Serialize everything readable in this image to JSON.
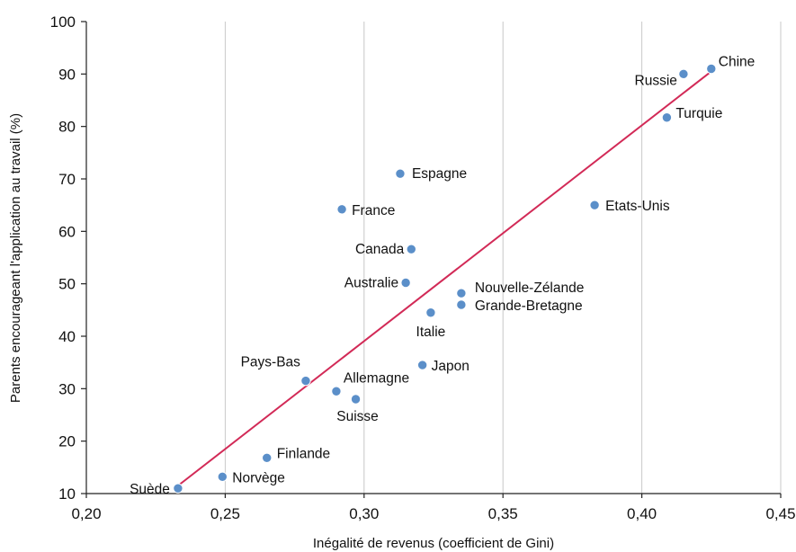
{
  "chart_data": {
    "type": "scatter",
    "title": "",
    "xlabel": "Inégalité de revenus (coefficient de Gini)",
    "ylabel": "Parents encourageant l'application au travail (%)",
    "xlim": [
      0.2,
      0.45
    ],
    "ylim": [
      10,
      100
    ],
    "x_ticks": [
      0.2,
      0.25,
      0.3,
      0.35,
      0.4,
      0.45
    ],
    "x_tick_labels": [
      "0,20",
      "0,25",
      "0,30",
      "0,35",
      "0,40",
      "0,45"
    ],
    "y_ticks": [
      10,
      20,
      30,
      40,
      50,
      60,
      70,
      80,
      90,
      100
    ],
    "y_tick_labels": [
      "10",
      "20",
      "30",
      "40",
      "50",
      "60",
      "70",
      "80",
      "90",
      "100"
    ],
    "grid": {
      "vertical": true,
      "horizontal": false
    },
    "point_color": "#5b8fc9",
    "trend_color": "#d22a57",
    "trendline": {
      "x": [
        0.233,
        0.425
      ],
      "y": [
        11.5,
        90.5
      ]
    },
    "points": [
      {
        "label": "Suède",
        "x": 0.233,
        "y": 11
      },
      {
        "label": "Norvège",
        "x": 0.249,
        "y": 13.2
      },
      {
        "label": "Finlande",
        "x": 0.265,
        "y": 16.8
      },
      {
        "label": "Pays-Bas",
        "x": 0.279,
        "y": 31.5
      },
      {
        "label": "Allemagne",
        "x": 0.29,
        "y": 29.5
      },
      {
        "label": "Suisse",
        "x": 0.297,
        "y": 28
      },
      {
        "label": "France",
        "x": 0.292,
        "y": 64.2
      },
      {
        "label": "Espagne",
        "x": 0.313,
        "y": 71
      },
      {
        "label": "Canada",
        "x": 0.317,
        "y": 56.6
      },
      {
        "label": "Australie",
        "x": 0.315,
        "y": 50.2
      },
      {
        "label": "Italie",
        "x": 0.324,
        "y": 44.5
      },
      {
        "label": "Japon",
        "x": 0.321,
        "y": 34.5
      },
      {
        "label": "Nouvelle-Zélande",
        "x": 0.335,
        "y": 48.2
      },
      {
        "label": "Grande-Bretagne",
        "x": 0.335,
        "y": 46
      },
      {
        "label": "Etats-Unis",
        "x": 0.383,
        "y": 65
      },
      {
        "label": "Turquie",
        "x": 0.409,
        "y": 81.7
      },
      {
        "label": "Russie",
        "x": 0.415,
        "y": 90
      },
      {
        "label": "Chine",
        "x": 0.425,
        "y": 91
      }
    ]
  }
}
